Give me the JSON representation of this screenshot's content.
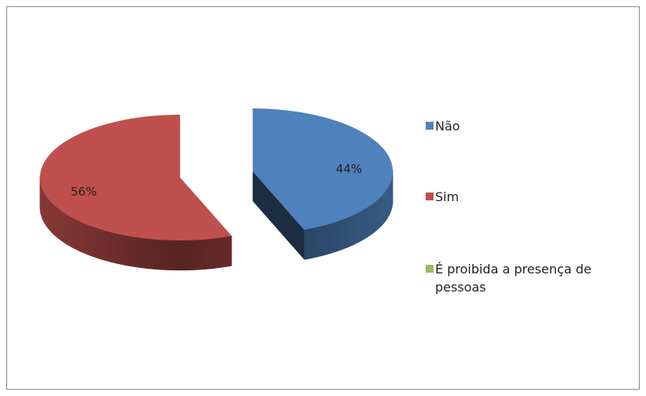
{
  "chart_data": {
    "type": "pie",
    "categories": [
      "Não",
      "Sim",
      "É proibida a presença de pessoas"
    ],
    "values": [
      44,
      56,
      0
    ],
    "value_labels": [
      "44%",
      "56%",
      null
    ],
    "colors": [
      "#4f81bd",
      "#c0504d",
      "#9bbb59"
    ],
    "legend": "right"
  }
}
